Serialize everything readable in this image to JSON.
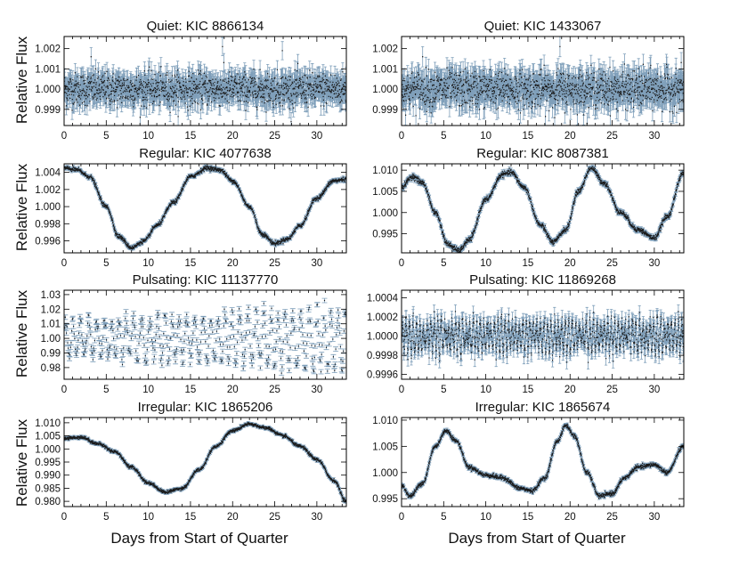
{
  "figure": {
    "ylabel": "Relative Flux",
    "xlabel": "Days from Start of Quarter",
    "xlim": [
      0,
      33.5
    ],
    "xticks": [
      0,
      5,
      10,
      15,
      20,
      25,
      30
    ]
  },
  "colors": {
    "errorbar": "#7f9fba",
    "point": "#1a1a1a",
    "axis": "#000000"
  },
  "chart_data": [
    {
      "type": "scatter",
      "title": "Quiet: KIC 8866134",
      "ylim": [
        0.9982,
        1.0026
      ],
      "yticks": [
        "0.999",
        "1.000",
        "1.001",
        "1.002"
      ],
      "ytick_values": [
        0.999,
        1.0,
        1.001,
        1.002
      ],
      "series": [
        {
          "name": "KIC 8866134",
          "shape": "noise",
          "center": 1.0,
          "amplitude": 0.0,
          "scatter": 0.0004,
          "errorbar": 0.00045,
          "outliers": [
            [
              18.8,
              1.0021
            ],
            [
              25.9,
              1.0019
            ],
            [
              3.2,
              1.0016
            ]
          ]
        }
      ]
    },
    {
      "type": "scatter",
      "title": "Quiet: KIC 1433067",
      "ylim": [
        0.9982,
        1.0026
      ],
      "yticks": [
        "0.999",
        "1.000",
        "1.001",
        "1.002"
      ],
      "ytick_values": [
        0.999,
        1.0,
        1.001,
        1.002
      ],
      "series": [
        {
          "name": "KIC 1433067",
          "shape": "noise",
          "center": 1.0,
          "amplitude": 0.0,
          "scatter": 0.00045,
          "errorbar": 0.0005,
          "outliers": [
            [
              18.8,
              1.0021
            ],
            [
              2.5,
              1.0016
            ]
          ]
        }
      ]
    },
    {
      "type": "scatter",
      "title": "Regular: KIC 4077638",
      "ylim": [
        0.9946,
        1.005
      ],
      "yticks": [
        "0.996",
        "0.998",
        "1.000",
        "1.002",
        "1.004"
      ],
      "ytick_values": [
        0.996,
        0.998,
        1.0,
        1.002,
        1.004
      ],
      "series": [
        {
          "name": "KIC 4077638",
          "shape": "curve",
          "scatter": 0.00012,
          "errorbar": 0.00015,
          "knots": [
            [
              0,
              1.0045
            ],
            [
              1.5,
              1.0043
            ],
            [
              3,
              1.0035
            ],
            [
              5,
              1.0
            ],
            [
              6.5,
              0.9965
            ],
            [
              8,
              0.9952
            ],
            [
              9.5,
              0.996
            ],
            [
              11,
              0.9978
            ],
            [
              13,
              1.0005
            ],
            [
              15,
              1.0035
            ],
            [
              17,
              1.0045
            ],
            [
              18.5,
              1.0043
            ],
            [
              20,
              1.003
            ],
            [
              22,
              1.0
            ],
            [
              23.5,
              0.9968
            ],
            [
              25,
              0.9957
            ],
            [
              26.5,
              0.9962
            ],
            [
              28,
              0.9978
            ],
            [
              30,
              1.001
            ],
            [
              32,
              1.003
            ],
            [
              33.5,
              1.0032
            ]
          ]
        }
      ]
    },
    {
      "type": "scatter",
      "title": "Regular: KIC 8087381",
      "ylim": [
        0.9905,
        1.0115
      ],
      "yticks": [
        "0.995",
        "1.000",
        "1.005",
        "1.010"
      ],
      "ytick_values": [
        0.995,
        1.0,
        1.005,
        1.01
      ],
      "series": [
        {
          "name": "KIC 8087381",
          "shape": "curve",
          "scatter": 0.0003,
          "errorbar": 0.0004,
          "knots": [
            [
              0,
              1.006
            ],
            [
              1.3,
              1.0085
            ],
            [
              2.5,
              1.007
            ],
            [
              4,
              1.0
            ],
            [
              5.5,
              0.9925
            ],
            [
              6.8,
              0.991
            ],
            [
              8,
              0.9935
            ],
            [
              10,
              1.003
            ],
            [
              12,
              1.009
            ],
            [
              13,
              1.0095
            ],
            [
              14.5,
              1.006
            ],
            [
              16.5,
              0.997
            ],
            [
              18,
              0.993
            ],
            [
              19.5,
              0.996
            ],
            [
              21,
              1.005
            ],
            [
              22.5,
              1.0105
            ],
            [
              24,
              1.007
            ],
            [
              26,
              1.0
            ],
            [
              28,
              0.996
            ],
            [
              30,
              0.994
            ],
            [
              31.5,
              0.999
            ],
            [
              33.5,
              1.0095
            ]
          ]
        }
      ]
    },
    {
      "type": "scatter",
      "title": "Pulsating: KIC 11137770",
      "ylim": [
        0.972,
        1.033
      ],
      "yticks": [
        "0.98",
        "0.99",
        "1.00",
        "1.01",
        "1.02",
        "1.03"
      ],
      "ytick_values": [
        0.98,
        0.99,
        1.0,
        1.01,
        1.02,
        1.03
      ],
      "series": [
        {
          "name": "KIC 11137770",
          "shape": "pulsating",
          "center": 1.0,
          "amplitude_start": 0.014,
          "amplitude_end": 0.026,
          "period": 0.9,
          "scatter": 0.002,
          "errorbar": 0.0015
        }
      ]
    },
    {
      "type": "scatter",
      "title": "Pulsating: KIC 11869268",
      "ylim": [
        0.99955,
        1.00048
      ],
      "yticks": [
        "0.9996",
        "0.9998",
        "1.0000",
        "1.0002",
        "1.0004"
      ],
      "ytick_values": [
        0.9996,
        0.9998,
        1.0,
        1.0002,
        1.0004
      ],
      "series": [
        {
          "name": "KIC 11869268",
          "shape": "beating",
          "center": 1.0,
          "amplitude": 0.00016,
          "scatter": 5e-05,
          "errorbar": 7e-05
        }
      ]
    },
    {
      "type": "scatter",
      "title": "Irregular: KIC 1865206",
      "ylim": [
        0.978,
        1.012
      ],
      "yticks": [
        "0.980",
        "0.985",
        "0.990",
        "0.995",
        "1.000",
        "1.005",
        "1.010"
      ],
      "ytick_values": [
        0.98,
        0.985,
        0.99,
        0.995,
        1.0,
        1.005,
        1.01
      ],
      "series": [
        {
          "name": "KIC 1865206",
          "shape": "curve",
          "scatter": 0.0003,
          "errorbar": 0.0004,
          "knots": [
            [
              0,
              1.004
            ],
            [
              2,
              1.0045
            ],
            [
              4,
              1.002
            ],
            [
              6,
              0.999
            ],
            [
              8,
              0.993
            ],
            [
              10,
              0.987
            ],
            [
              12,
              0.9835
            ],
            [
              14,
              0.985
            ],
            [
              16,
              0.992
            ],
            [
              18,
              1.001
            ],
            [
              20,
              1.007
            ],
            [
              22,
              1.0095
            ],
            [
              24,
              1.008
            ],
            [
              26,
              1.005
            ],
            [
              28,
              1.001
            ],
            [
              30,
              0.996
            ],
            [
              32,
              0.988
            ],
            [
              33.5,
              0.98
            ]
          ]
        }
      ]
    },
    {
      "type": "scatter",
      "title": "Irregular: KIC 1865674",
      "ylim": [
        0.9935,
        1.0105
      ],
      "yticks": [
        "0.995",
        "1.000",
        "1.005",
        "1.010"
      ],
      "ytick_values": [
        0.995,
        1.0,
        1.005,
        1.01
      ],
      "series": [
        {
          "name": "KIC 1865674",
          "shape": "curve",
          "scatter": 0.0002,
          "errorbar": 0.00025,
          "knots": [
            [
              0,
              0.9975
            ],
            [
              1,
              0.9955
            ],
            [
              2.5,
              0.998
            ],
            [
              4,
              1.005
            ],
            [
              5.3,
              1.008
            ],
            [
              6.5,
              1.006
            ],
            [
              8,
              1.001
            ],
            [
              10,
              0.9995
            ],
            [
              12,
              0.999
            ],
            [
              14,
              0.997
            ],
            [
              15.5,
              0.9965
            ],
            [
              17,
              0.999
            ],
            [
              18.5,
              1.006
            ],
            [
              19.5,
              1.009
            ],
            [
              20.5,
              1.007
            ],
            [
              22,
              1.0
            ],
            [
              23.5,
              0.9955
            ],
            [
              25,
              0.996
            ],
            [
              26.5,
              0.999
            ],
            [
              28,
              1.001
            ],
            [
              30,
              1.0015
            ],
            [
              31.5,
              1.0
            ],
            [
              33.5,
              1.005
            ]
          ]
        }
      ]
    }
  ]
}
